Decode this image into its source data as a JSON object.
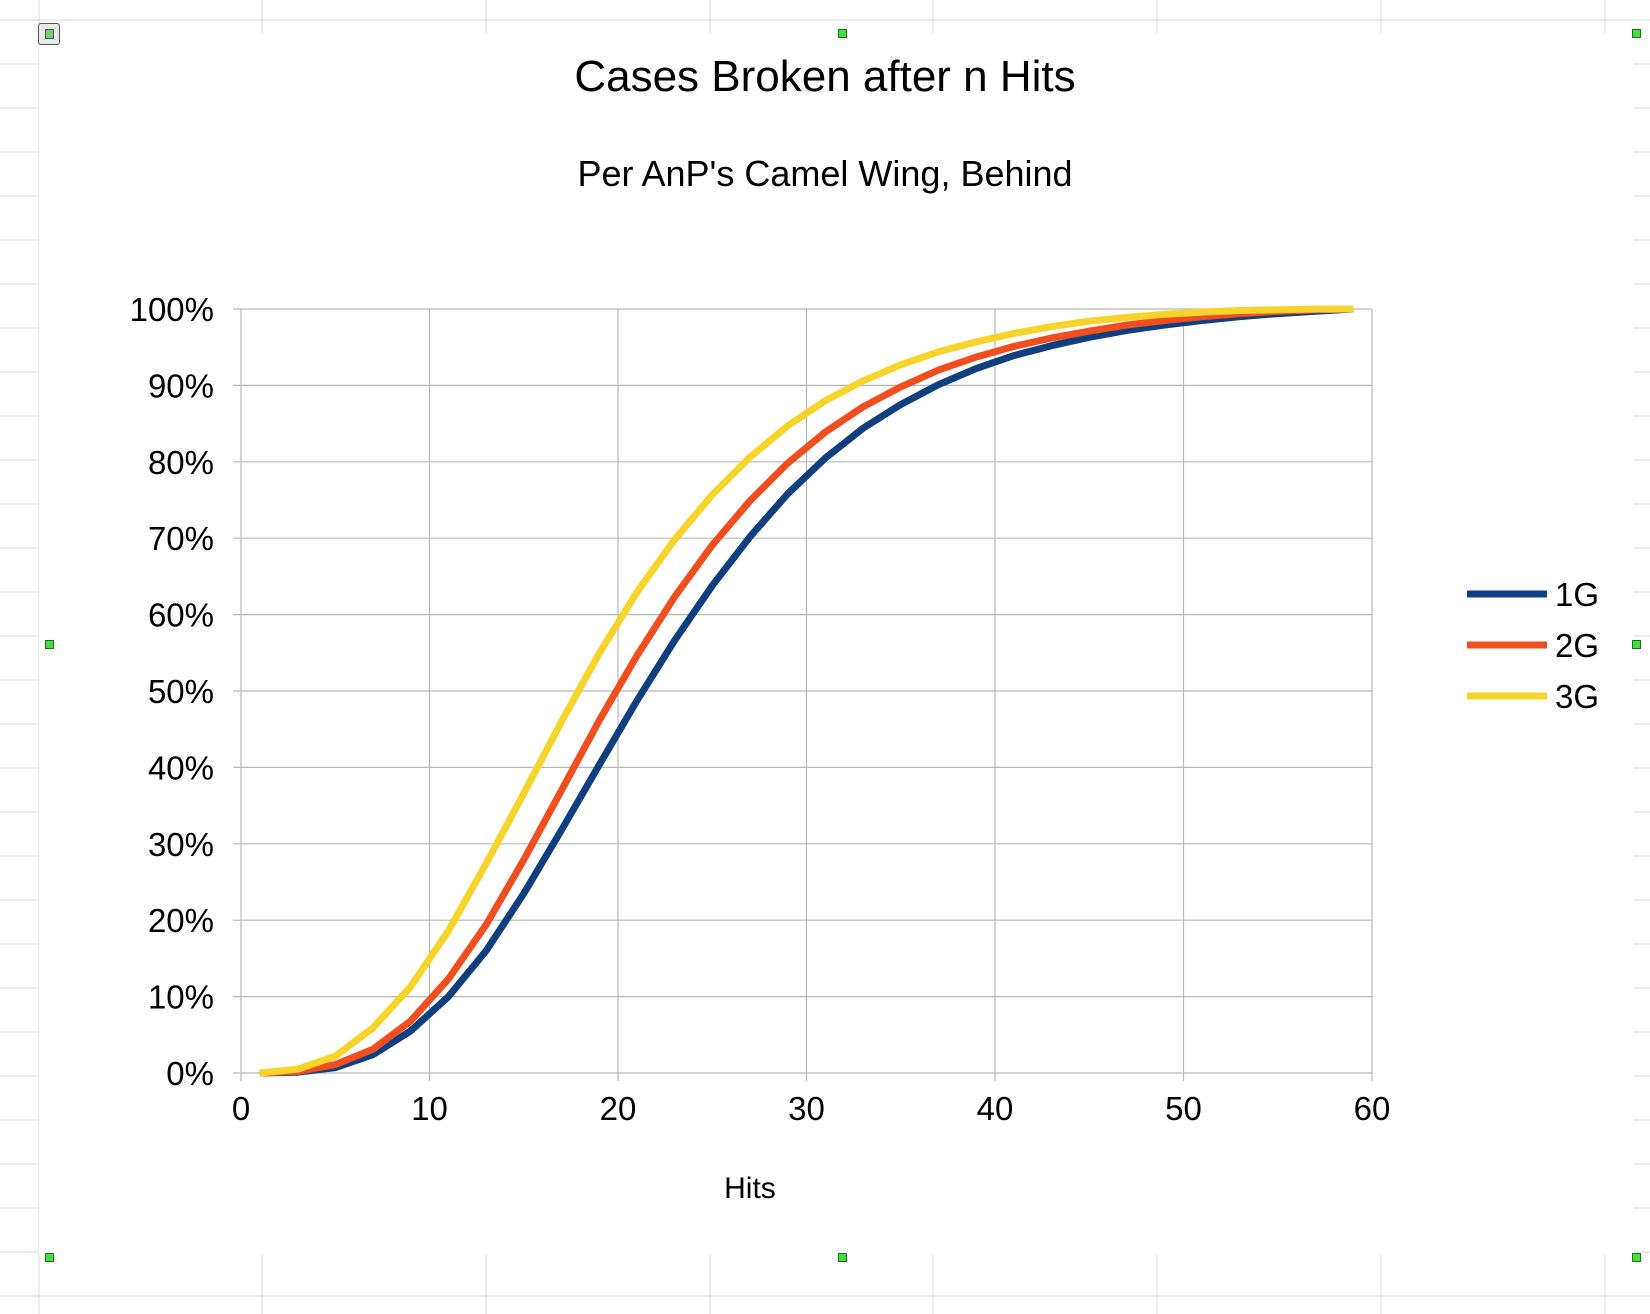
{
  "chart_data": {
    "type": "line",
    "title": "Cases Broken after n Hits",
    "subtitle": "Per AnP's Camel Wing, Behind",
    "xlabel": "Hits",
    "ylabel": "",
    "xlim": [
      0,
      60
    ],
    "ylim": [
      0,
      1
    ],
    "x_ticks": [
      "0",
      "10",
      "20",
      "30",
      "40",
      "50",
      "60"
    ],
    "y_ticks": [
      "0%",
      "10%",
      "20%",
      "30%",
      "40%",
      "50%",
      "60%",
      "70%",
      "80%",
      "90%",
      "100%"
    ],
    "grid": true,
    "legend_position": "right",
    "x": [
      1,
      3,
      5,
      7,
      9,
      11,
      13,
      15,
      17,
      19,
      21,
      23,
      25,
      27,
      29,
      31,
      33,
      35,
      37,
      39,
      41,
      43,
      45,
      47,
      49,
      51,
      53,
      55,
      57,
      59
    ],
    "series": [
      {
        "name": "1G",
        "color": "#0f3f7f",
        "values": [
          0.0,
          0.001,
          0.007,
          0.024,
          0.055,
          0.1,
          0.16,
          0.235,
          0.318,
          0.403,
          0.487,
          0.566,
          0.638,
          0.702,
          0.758,
          0.805,
          0.844,
          0.875,
          0.901,
          0.922,
          0.939,
          0.952,
          0.963,
          0.972,
          0.979,
          0.985,
          0.99,
          0.994,
          0.997,
          1.0
        ]
      },
      {
        "name": "2G",
        "color": "#f04e1e",
        "values": [
          0.0,
          0.002,
          0.011,
          0.031,
          0.068,
          0.123,
          0.194,
          0.279,
          0.37,
          0.461,
          0.546,
          0.623,
          0.691,
          0.749,
          0.798,
          0.839,
          0.872,
          0.898,
          0.92,
          0.937,
          0.951,
          0.962,
          0.971,
          0.979,
          0.985,
          0.99,
          0.994,
          0.997,
          0.999,
          1.0
        ]
      },
      {
        "name": "3G",
        "color": "#f7d42a",
        "values": [
          0.0,
          0.005,
          0.022,
          0.059,
          0.113,
          0.186,
          0.274,
          0.366,
          0.46,
          0.549,
          0.629,
          0.698,
          0.757,
          0.806,
          0.847,
          0.88,
          0.906,
          0.927,
          0.944,
          0.957,
          0.968,
          0.977,
          0.984,
          0.989,
          0.993,
          0.996,
          0.998,
          0.999,
          1.0,
          1.0
        ]
      }
    ]
  }
}
